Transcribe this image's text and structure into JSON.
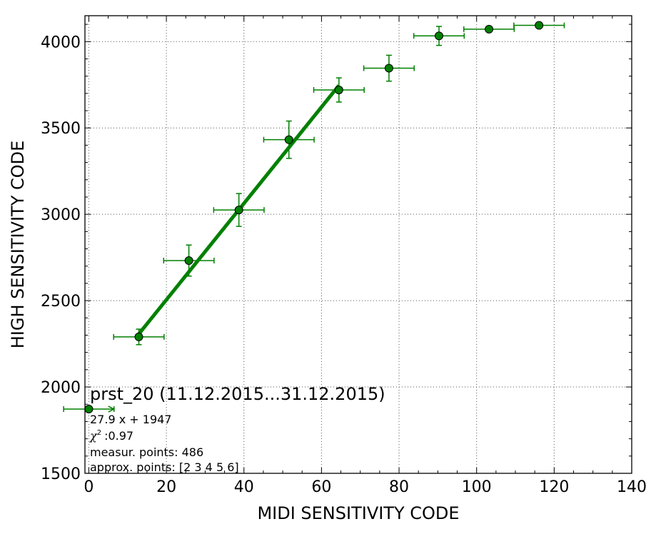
{
  "chart_data": {
    "type": "scatter",
    "title": "",
    "xlabel": "MIDI SENSITIVITY CODE",
    "ylabel": "HIGH SENSITIVITY CODE",
    "xlim": [
      -1,
      140
    ],
    "ylim": [
      1500,
      4150
    ],
    "grid": true,
    "x_ticks": [
      0,
      20,
      40,
      60,
      80,
      100,
      120,
      140
    ],
    "y_ticks": [
      1500,
      2000,
      2500,
      3000,
      3500,
      4000
    ],
    "x_tick_labels": [
      "0",
      "20",
      "40",
      "60",
      "80",
      "100",
      "120",
      "140"
    ],
    "y_tick_labels": [
      "1500",
      "2000",
      "2500",
      "3000",
      "3500",
      "4000"
    ],
    "series": [
      {
        "color": "#008000",
        "points": [
          {
            "x": 0,
            "y": 1872,
            "xerr": 6.5,
            "yerr": 0
          },
          {
            "x": 12.9,
            "y": 2290,
            "xerr": 6.5,
            "yerr": 45
          },
          {
            "x": 25.8,
            "y": 2732,
            "xerr": 6.5,
            "yerr": 90
          },
          {
            "x": 38.7,
            "y": 3025,
            "xerr": 6.5,
            "yerr": 95
          },
          {
            "x": 51.6,
            "y": 3432,
            "xerr": 6.5,
            "yerr": 108
          },
          {
            "x": 64.5,
            "y": 3720,
            "xerr": 6.5,
            "yerr": 70
          },
          {
            "x": 77.4,
            "y": 3846,
            "xerr": 6.5,
            "yerr": 75
          },
          {
            "x": 90.3,
            "y": 4033,
            "xerr": 6.5,
            "yerr": 55
          },
          {
            "x": 103.2,
            "y": 4072,
            "xerr": 6.5,
            "yerr": 0
          },
          {
            "x": 116.1,
            "y": 4094,
            "xerr": 6.5,
            "yerr": 0
          }
        ]
      }
    ],
    "fit_line": {
      "slope": 27.9,
      "intercept": 1947,
      "x_range": [
        12.9,
        64.5
      ],
      "color": "#008000"
    },
    "annotation": {
      "title": "prst_20 (11.12.2015...31.12.2015)",
      "equation": "27.9 x + 1947",
      "chi2_symbol": "χ",
      "chi2_sup": "2",
      "chi2_value": ":0.97",
      "measur_points": "measur. points: 486",
      "approx_points": "approx. points: [2 3 4 5 6]"
    }
  }
}
